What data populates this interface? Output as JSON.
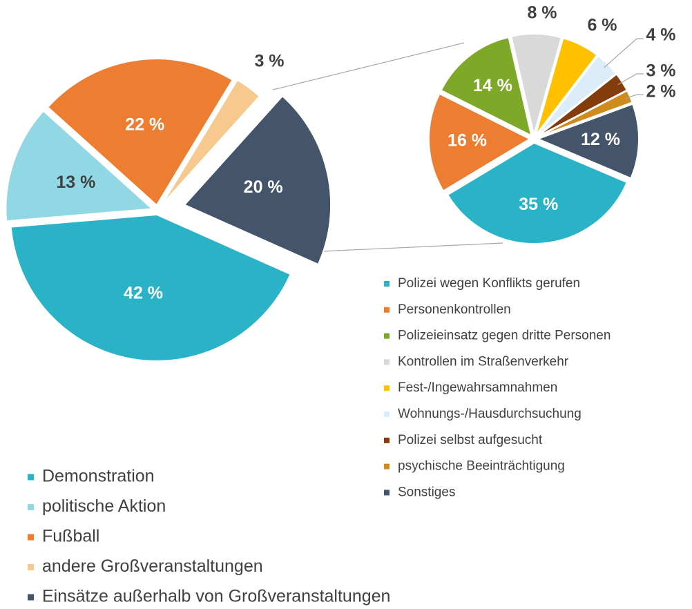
{
  "chart_data": [
    {
      "type": "pie",
      "categories": [
        "Demonstration",
        "politische Aktion",
        "Fußball",
        "andere Großveranstaltungen",
        "Einsätze außerhalb von Großveranstaltungen"
      ],
      "values": [
        42,
        13,
        22,
        3,
        20
      ],
      "value_labels": [
        "42 %",
        "13 %",
        "22 %",
        "3 %",
        "20 %"
      ],
      "colors": [
        "#2ab3c6",
        "#92d8e4",
        "#ed7d31",
        "#f8c98f",
        "#44546a"
      ]
    },
    {
      "type": "pie",
      "categories": [
        "Polizei wegen Konflikts gerufen",
        "Personenkontrollen",
        "Polizeieinsatz gegen dritte Personen",
        "Kontrollen im Straßenverkehr",
        "Fest-/Ingewahrsamnahmen",
        "Wohnungs-/Hausdurchsuchung",
        "Polizei selbst aufgesucht",
        "psychische Beeinträchtigung",
        "Sonstiges"
      ],
      "values": [
        35,
        16,
        14,
        8,
        6,
        4,
        3,
        2,
        12
      ],
      "value_labels": [
        "35 %",
        "16 %",
        "14 %",
        "8 %",
        "6 %",
        "4 %",
        "3 %",
        "2 %",
        "12 %"
      ],
      "colors": [
        "#2ab3c6",
        "#ed7d31",
        "#7ea827",
        "#d9d9d9",
        "#ffc000",
        "#dcedf9",
        "#843c0c",
        "#d08b1f",
        "#44546a"
      ]
    }
  ]
}
